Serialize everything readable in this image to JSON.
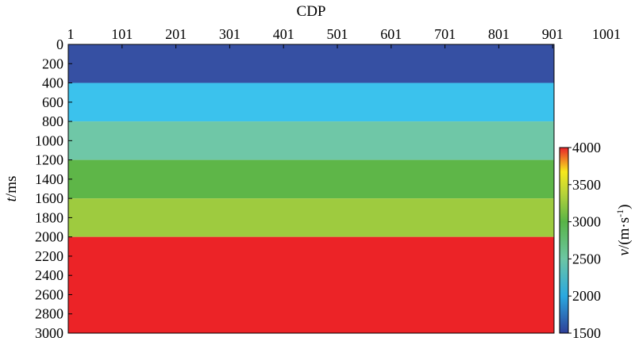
{
  "chart_data": {
    "type": "heatmap",
    "title": "",
    "xlabel": "CDP",
    "ylabel_italic": "t",
    "ylabel_rest": "/ms",
    "x_ticks": [
      "1",
      "101",
      "201",
      "301",
      "401",
      "501",
      "601",
      "701",
      "801",
      "901",
      "1001"
    ],
    "x_range": [
      1,
      1001
    ],
    "data_x_range": [
      1,
      1001
    ],
    "y_ticks": [
      "0",
      "200",
      "400",
      "600",
      "800",
      "1000",
      "1200",
      "1400",
      "1600",
      "1800",
      "2000",
      "2200",
      "2400",
      "2600",
      "2800",
      "3000"
    ],
    "y_range": [
      0,
      3000
    ],
    "layers": [
      {
        "t_top": 0,
        "t_bottom": 400,
        "velocity": 1500,
        "color": "#3650a3"
      },
      {
        "t_top": 400,
        "t_bottom": 800,
        "velocity": 2100,
        "color": "#3bc2ed"
      },
      {
        "t_top": 800,
        "t_bottom": 1200,
        "velocity": 2350,
        "color": "#6fc7a7"
      },
      {
        "t_top": 1200,
        "t_bottom": 1600,
        "velocity": 2800,
        "color": "#5eb648"
      },
      {
        "t_top": 1600,
        "t_bottom": 2000,
        "velocity": 3100,
        "color": "#9ecb3f"
      },
      {
        "t_top": 2000,
        "t_bottom": 3000,
        "velocity": 4000,
        "color": "#ec2327"
      }
    ],
    "colorbar": {
      "label_italic": "v",
      "label_rest": "/(m·s",
      "label_sup": "-1",
      "label_close": ")",
      "ticks": [
        "1500",
        "2000",
        "2500",
        "3000",
        "3500",
        "4000"
      ],
      "range": [
        1500,
        4000
      ],
      "stops": [
        {
          "offset": 0.0,
          "color": "#2e3f98"
        },
        {
          "offset": 0.2,
          "color": "#2aa8e0"
        },
        {
          "offset": 0.4,
          "color": "#6cc6a4"
        },
        {
          "offset": 0.6,
          "color": "#58b447"
        },
        {
          "offset": 0.75,
          "color": "#b6d33a"
        },
        {
          "offset": 0.87,
          "color": "#f7e91d"
        },
        {
          "offset": 1.0,
          "color": "#e8232a"
        }
      ]
    }
  }
}
